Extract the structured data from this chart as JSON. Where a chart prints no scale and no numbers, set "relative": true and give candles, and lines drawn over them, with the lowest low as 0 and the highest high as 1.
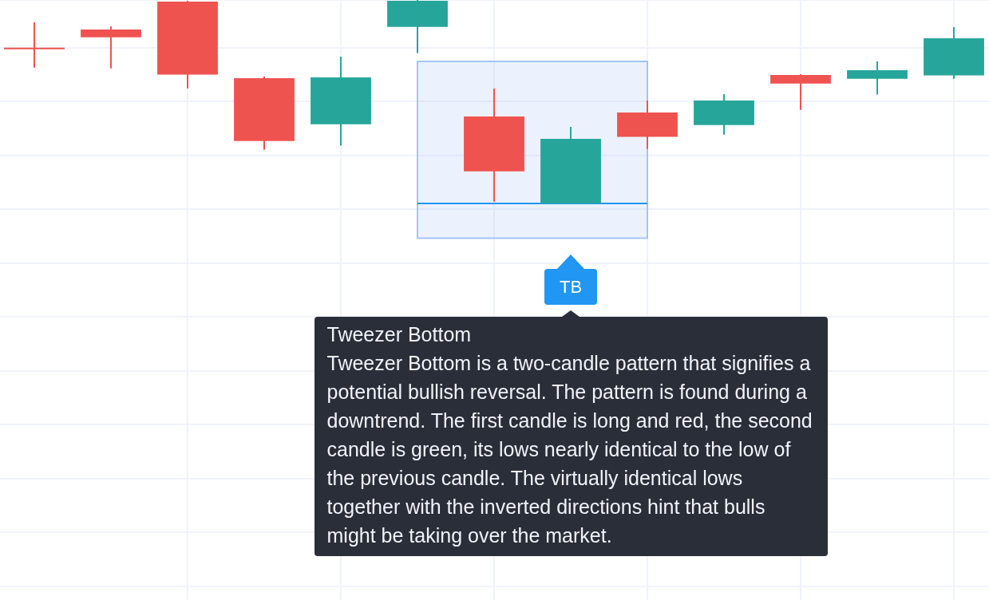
{
  "chart_data": {
    "type": "candlestick",
    "relative": true,
    "grid": true,
    "categories": [
      null,
      null,
      null,
      null,
      null,
      null,
      null,
      null,
      null,
      null,
      null,
      null,
      null
    ],
    "ohlc": [
      [
        0.762,
        0.89,
        0.668,
        0.762
      ],
      [
        0.855,
        0.871,
        0.664,
        0.817
      ],
      [
        0.992,
        0.996,
        0.566,
        0.633
      ],
      [
        0.616,
        0.624,
        0.264,
        0.307
      ],
      [
        0.389,
        0.722,
        0.284,
        0.62
      ],
      [
        0.868,
        1,
        0.739,
        0.996
      ],
      [
        0.427,
        0.565,
        0.009,
        0.158
      ],
      [
        0,
        0.376,
        0,
        0.318
      ],
      [
        0.447,
        0.506,
        0.268,
        0.327
      ],
      [
        0.385,
        0.537,
        0.338,
        0.506
      ],
      [
        0.631,
        0.635,
        0.46,
        0.589
      ],
      [
        0.613,
        0.698,
        0.535,
        0.655
      ],
      [
        0.629,
        0.867,
        0.613,
        0.812
      ]
    ],
    "colors": [
      "#ef5350",
      "#ef5350",
      "#ef5350",
      "#ef5350",
      "#26a69a",
      "#26a69a",
      "#ef5350",
      "#26a69a",
      "#ef5350",
      "#26a69a",
      "#ef5350",
      "#26a69a",
      "#26a69a"
    ],
    "ref_lines": [
      {
        "axis": "y",
        "value": 0,
        "label": "TB",
        "color": "#2196f3"
      }
    ],
    "bands": [
      {
        "axis": "y",
        "from": -0.171,
        "to": 0.698,
        "color": "#a4c4f4"
      }
    ],
    "annotations": [
      "Tweezer Bottom",
      "Tweezer Bottom is a two-candle pattern that signifies a potential bullish reversal. The pattern is found during a downtrend. The first candle is long and red, the second candle is green, its lows nearly identical to the low of the previous candle. The virtually identical lows together with the inverted directions hint that bulls might be taking over the market."
    ]
  }
}
